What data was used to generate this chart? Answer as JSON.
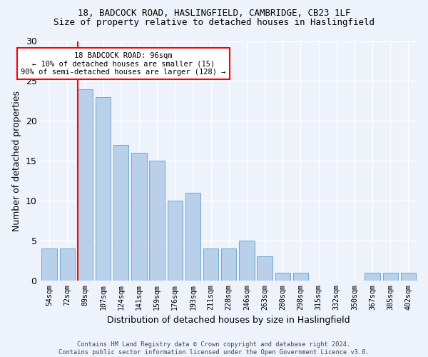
{
  "title1": "18, BADCOCK ROAD, HASLINGFIELD, CAMBRIDGE, CB23 1LF",
  "title2": "Size of property relative to detached houses in Haslingfield",
  "xlabel": "Distribution of detached houses by size in Haslingfield",
  "ylabel": "Number of detached properties",
  "bin_labels": [
    "54sqm",
    "72sqm",
    "89sqm",
    "107sqm",
    "124sqm",
    "141sqm",
    "159sqm",
    "176sqm",
    "193sqm",
    "211sqm",
    "228sqm",
    "246sqm",
    "263sqm",
    "280sqm",
    "298sqm",
    "315sqm",
    "332sqm",
    "350sqm",
    "367sqm",
    "385sqm",
    "402sqm"
  ],
  "bar_heights": [
    4,
    4,
    24,
    23,
    17,
    16,
    15,
    10,
    11,
    4,
    4,
    5,
    3,
    1,
    1,
    0,
    0,
    0,
    1,
    1,
    1
  ],
  "bar_color": "#b8d0ea",
  "bar_edge_color": "#6aaad4",
  "vline_color": "red",
  "vline_index": 2,
  "annotation_text": "18 BADCOCK ROAD: 96sqm\n← 10% of detached houses are smaller (15)\n90% of semi-detached houses are larger (128) →",
  "annotation_box_color": "white",
  "annotation_box_edge": "red",
  "ylim": [
    0,
    30
  ],
  "yticks": [
    0,
    5,
    10,
    15,
    20,
    25,
    30
  ],
  "footer1": "Contains HM Land Registry data © Crown copyright and database right 2024.",
  "footer2": "Contains public sector information licensed under the Open Government Licence v3.0.",
  "bg_color": "#eef2fb"
}
